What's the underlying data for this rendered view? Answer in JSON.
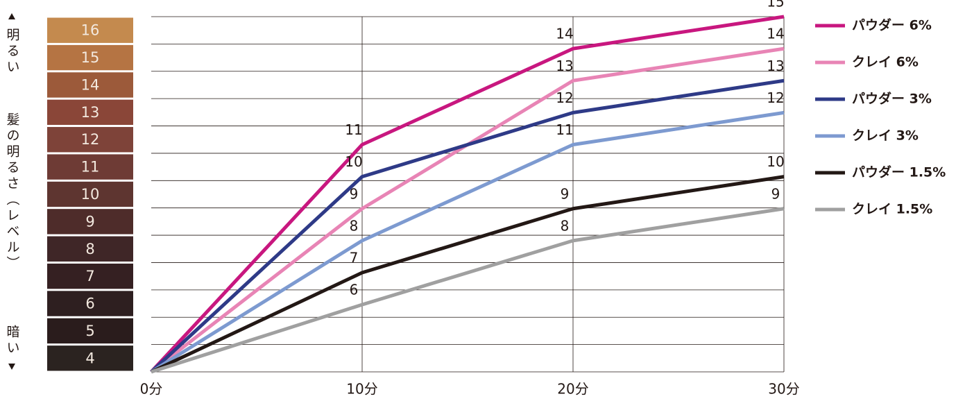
{
  "chart_data": {
    "type": "line",
    "categories": [
      "0分",
      "10分",
      "20分",
      "30分"
    ],
    "ylim": [
      3.9,
      15
    ],
    "grid": true,
    "level_scale": {
      "bright": "明るい",
      "title": "髪の明るさ（レベル）",
      "dark": "暗い",
      "levels": [
        16,
        15,
        14,
        13,
        12,
        11,
        10,
        9,
        8,
        7,
        6,
        5,
        4
      ],
      "colors": [
        "#c48a4e",
        "#b57443",
        "#9c5a3a",
        "#8a4638",
        "#7e4339",
        "#6e3b35",
        "#5e3530",
        "#4e2c2a",
        "#3f2627",
        "#352022",
        "#2e1f20",
        "#2a1c1c",
        "#2b2320"
      ]
    },
    "series": [
      {
        "name": "パウダー 6%",
        "color": "#c8177f",
        "values": [
          3.9,
          11,
          14,
          15
        ]
      },
      {
        "name": "クレイ 6%",
        "color": "#e884b5",
        "values": [
          3.9,
          9,
          13,
          14
        ]
      },
      {
        "name": "パウダー 3%",
        "color": "#2e3a87",
        "values": [
          3.9,
          10,
          12,
          13
        ]
      },
      {
        "name": "クレイ 3%",
        "color": "#7d9ad0",
        "values": [
          3.9,
          8,
          11,
          12
        ]
      },
      {
        "name": "パウダー 1.5%",
        "color": "#231815",
        "values": [
          3.9,
          7,
          9,
          10
        ]
      },
      {
        "name": "クレイ 1.5%",
        "color": "#a0a0a0",
        "values": [
          3.9,
          6,
          8,
          9
        ]
      }
    ]
  }
}
